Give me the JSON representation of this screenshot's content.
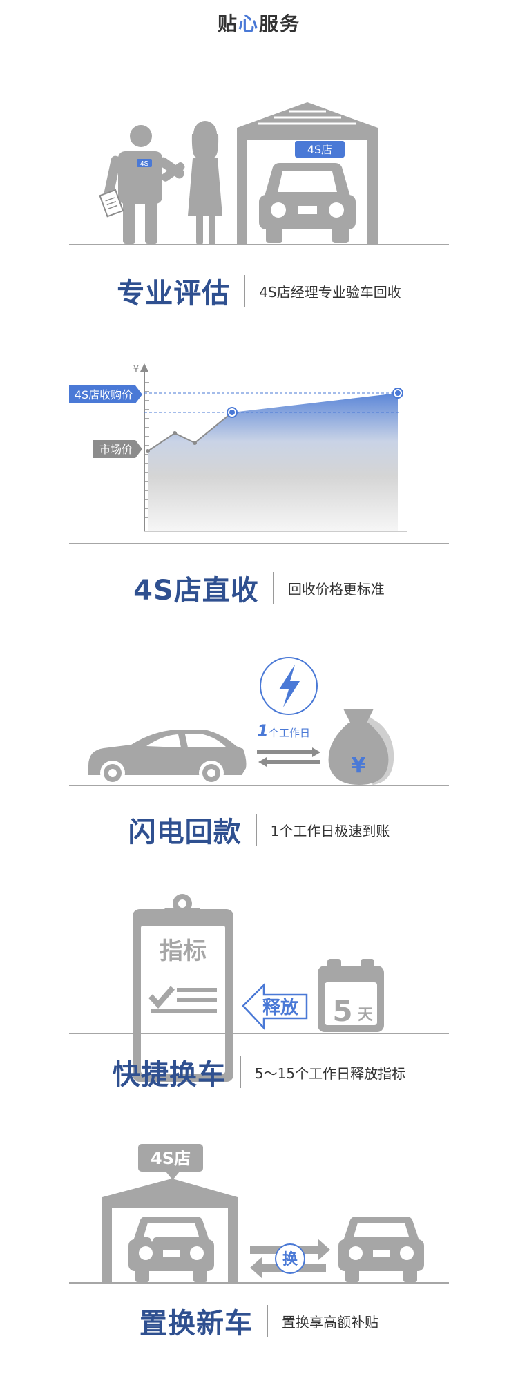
{
  "header": {
    "title_part1": "贴",
    "title_heart": "心",
    "title_part2": "服务"
  },
  "sections": [
    {
      "title": "专业评估",
      "desc": "4S店经理专业验车回收",
      "badge": "4S",
      "sign": "4S店"
    },
    {
      "title": "4S店直收",
      "desc": "回收价格更标准",
      "axis_symbol": "¥",
      "label_top": "4S店收购价",
      "label_mid": "市场价"
    },
    {
      "title": "闪电回款",
      "desc": "1个工作日极速到账",
      "days_num": "1",
      "days_text": "个工作日",
      "money_symbol": "¥"
    },
    {
      "title": "快捷换车",
      "desc": "5～15个工作日释放指标",
      "clip_text": "指标",
      "release_text": "释放",
      "cal_num": "5",
      "cal_unit": "天"
    },
    {
      "title": "置换新车",
      "desc": "置换享高额补贴",
      "sign": "4S店",
      "swap_text": "换"
    }
  ],
  "colors": {
    "accent_blue": "#4a79d6",
    "title_blue": "#2f5090",
    "gray": "#a6a6a6",
    "dark_gray": "#8c8c8c"
  },
  "chart_data": {
    "type": "area",
    "series": [
      {
        "values": [
          0.58,
          0.71,
          0.64,
          0.86,
          0.85,
          1.0
        ]
      }
    ]
  }
}
